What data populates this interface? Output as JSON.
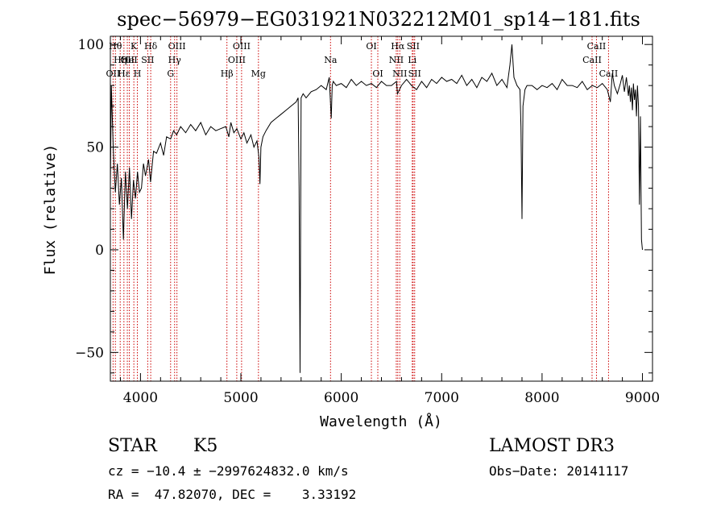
{
  "chart_data": {
    "type": "line",
    "title": "spec−56979−EG031921N032212M01_sp14−181.fits",
    "xlabel": "Wavelength (Å)",
    "ylabel": "Flux (relative)",
    "xlim": [
      3700,
      9100
    ],
    "ylim": [
      -64,
      104
    ],
    "xticks": [
      {
        "value": 4000,
        "label": "4000"
      },
      {
        "value": 5000,
        "label": "5000"
      },
      {
        "value": 6000,
        "label": "6000"
      },
      {
        "value": 7000,
        "label": "7000"
      },
      {
        "value": 8000,
        "label": "8000"
      },
      {
        "value": 9000,
        "label": "9000"
      }
    ],
    "yticks": [
      {
        "value": -50,
        "label": "−50"
      },
      {
        "value": 0,
        "label": "0"
      },
      {
        "value": 50,
        "label": "50"
      },
      {
        "value": 100,
        "label": "100"
      }
    ],
    "x_minor_step": 200,
    "y_minor_step": 10,
    "line_color": "#000000",
    "marker_color": "#cc0000",
    "grid": false,
    "series": [
      {
        "x": [
          3700,
          3710,
          3730,
          3750,
          3770,
          3790,
          3810,
          3830,
          3850,
          3870,
          3890,
          3910,
          3930,
          3950,
          3970,
          3990,
          4010,
          4030,
          4050,
          4080,
          4100,
          4130,
          4160,
          4200,
          4230,
          4260,
          4300,
          4330,
          4360,
          4400,
          4450,
          4500,
          4550,
          4600,
          4650,
          4700,
          4750,
          4800,
          4850,
          4880,
          4900,
          4930,
          4960,
          5000,
          5030,
          5060,
          5100,
          5130,
          5160,
          5180,
          5190,
          5200,
          5220,
          5250,
          5300,
          5350,
          5400,
          5450,
          5500,
          5550,
          5570,
          5580,
          5590,
          5600,
          5620,
          5650,
          5700,
          5750,
          5800,
          5850,
          5880,
          5900,
          5910,
          5920,
          5950,
          6000,
          6050,
          6100,
          6150,
          6200,
          6250,
          6300,
          6350,
          6400,
          6450,
          6500,
          6550,
          6560,
          6570,
          6600,
          6650,
          6700,
          6750,
          6800,
          6850,
          6900,
          6950,
          7000,
          7050,
          7100,
          7150,
          7200,
          7250,
          7300,
          7350,
          7400,
          7450,
          7500,
          7550,
          7600,
          7650,
          7680,
          7700,
          7720,
          7750,
          7780,
          7790,
          7800,
          7810,
          7830,
          7850,
          7900,
          7950,
          8000,
          8050,
          8100,
          8150,
          8200,
          8250,
          8300,
          8350,
          8400,
          8450,
          8500,
          8550,
          8600,
          8650,
          8680,
          8700,
          8720,
          8750,
          8780,
          8800,
          8820,
          8840,
          8860,
          8870,
          8880,
          8890,
          8900,
          8910,
          8920,
          8930,
          8940,
          8950,
          8960,
          8970,
          8980,
          8990,
          9000
        ],
        "y": [
          30,
          80,
          48,
          28,
          42,
          22,
          35,
          5,
          38,
          20,
          40,
          15,
          34,
          25,
          38,
          28,
          30,
          42,
          36,
          44,
          33,
          48,
          47,
          52,
          46,
          55,
          54,
          58,
          56,
          60,
          57,
          61,
          58,
          62,
          56,
          60,
          58,
          59,
          60,
          55,
          62,
          57,
          59,
          54,
          57,
          52,
          56,
          50,
          53,
          45,
          32,
          50,
          55,
          58,
          62,
          64,
          66,
          68,
          70,
          72,
          74,
          30,
          -60,
          74,
          76,
          74,
          77,
          78,
          80,
          78,
          84,
          64,
          80,
          82,
          80,
          81,
          79,
          83,
          80,
          82,
          80,
          81,
          79,
          82,
          80,
          80,
          82,
          76,
          77,
          80,
          83,
          80,
          78,
          82,
          79,
          83,
          81,
          84,
          82,
          83,
          81,
          85,
          80,
          83,
          79,
          84,
          82,
          86,
          80,
          83,
          79,
          90,
          100,
          84,
          80,
          78,
          60,
          15,
          70,
          78,
          80,
          80,
          78,
          80,
          79,
          81,
          78,
          83,
          80,
          80,
          79,
          82,
          78,
          80,
          79,
          81,
          78,
          72,
          86,
          80,
          76,
          81,
          85,
          77,
          84,
          75,
          80,
          72,
          79,
          68,
          81,
          73,
          78,
          65,
          80,
          70,
          22,
          65,
          5,
          0
        ]
      }
    ],
    "line_markers": [
      {
        "x": 3727,
        "label": "OII",
        "row": 2
      },
      {
        "x": 3750,
        "label": "Hθ",
        "row": 0
      },
      {
        "x": 3798,
        "label": "Hη",
        "row": 1
      },
      {
        "x": 3835,
        "label": "Hε",
        "row": 2
      },
      {
        "x": 3869,
        "label": "OII",
        "row": 1
      },
      {
        "x": 3889,
        "label": "HeI",
        "row": 1
      },
      {
        "x": 3934,
        "label": "K",
        "row": 0
      },
      {
        "x": 3969,
        "label": "H",
        "row": 2
      },
      {
        "x": 4072,
        "label": "SII",
        "row": 1
      },
      {
        "x": 4102,
        "label": "Hδ",
        "row": 0
      },
      {
        "x": 4300,
        "label": "G",
        "row": 2
      },
      {
        "x": 4340,
        "label": "Hγ",
        "row": 1
      },
      {
        "x": 4363,
        "label": "OIII",
        "row": 0
      },
      {
        "x": 4861,
        "label": "Hβ",
        "row": 2
      },
      {
        "x": 4959,
        "label": "OIII",
        "row": 1
      },
      {
        "x": 5007,
        "label": "OIII",
        "row": 0
      },
      {
        "x": 5175,
        "label": "Mg",
        "row": 2
      },
      {
        "x": 5893,
        "label": "Na",
        "row": 1
      },
      {
        "x": 6300,
        "label": "OI",
        "row": 0
      },
      {
        "x": 6364,
        "label": "OI",
        "row": 2
      },
      {
        "x": 6548,
        "label": "NII",
        "row": 1
      },
      {
        "x": 6563,
        "label": "Hα",
        "row": 0
      },
      {
        "x": 6583,
        "label": "NII",
        "row": 2
      },
      {
        "x": 6707,
        "label": "Li",
        "row": 1
      },
      {
        "x": 6716,
        "label": "SII",
        "row": 0
      },
      {
        "x": 6731,
        "label": "SII",
        "row": 2
      },
      {
        "x": 8498,
        "label": "CaII",
        "row": 1
      },
      {
        "x": 8542,
        "label": "CaII",
        "row": 0
      },
      {
        "x": 8662,
        "label": "CaII",
        "row": 2
      }
    ]
  },
  "info": {
    "class_label": "STAR",
    "subclass": "K5",
    "survey": "LAMOST DR3",
    "cz_text": "cz = −10.4 ± −2997624832.0 km/s",
    "obs_date_text": "Obs−Date: 20141117",
    "radec_text": "RA =  47.82070, DEC =    3.33192"
  }
}
